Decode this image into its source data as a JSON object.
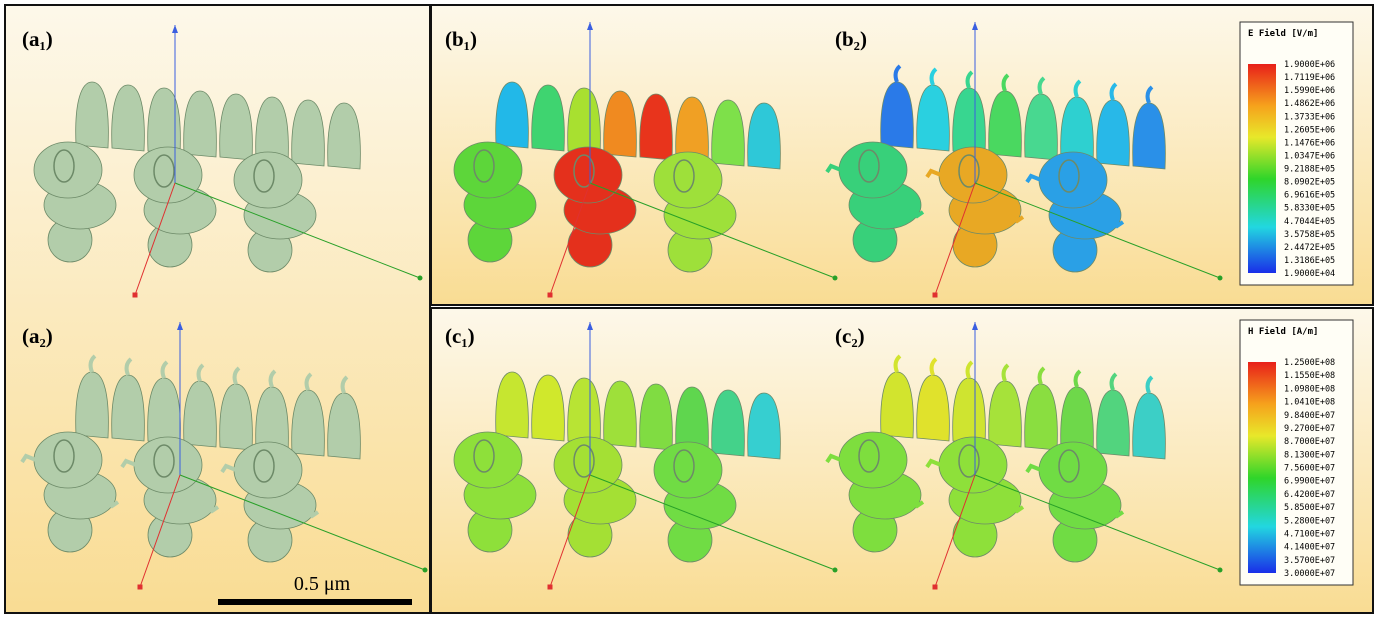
{
  "panels": [
    {
      "label": "(a₁)"
    },
    {
      "label": "(a₂)"
    },
    {
      "label": "(b₁)"
    },
    {
      "label": "(b₂)"
    },
    {
      "label": "(c₁)"
    },
    {
      "label": "(c₂)"
    }
  ],
  "scale_bar": {
    "label": "0.5 μm"
  },
  "legends": [
    {
      "title": "E Field [V/m]",
      "labels": [
        "1.9000E+06",
        "1.7119E+06",
        "1.5990E+06",
        "1.4862E+06",
        "1.3733E+06",
        "1.2605E+06",
        "1.1476E+06",
        "1.0347E+06",
        "9.2188E+05",
        "8.0902E+05",
        "6.9616E+05",
        "5.8330E+05",
        "4.7044E+05",
        "3.5758E+05",
        "2.4472E+05",
        "1.3186E+05",
        "1.9000E+04"
      ]
    },
    {
      "title": "H Field [A/m]",
      "labels": [
        "1.2500E+08",
        "1.1550E+08",
        "1.0980E+08",
        "1.0410E+08",
        "9.8400E+07",
        "9.2700E+07",
        "8.7000E+07",
        "8.1300E+07",
        "7.5600E+07",
        "6.9900E+07",
        "6.4200E+07",
        "5.8500E+07",
        "5.2800E+07",
        "4.7100E+07",
        "4.1400E+07",
        "3.5700E+07",
        "3.0000E+07"
      ]
    }
  ]
}
